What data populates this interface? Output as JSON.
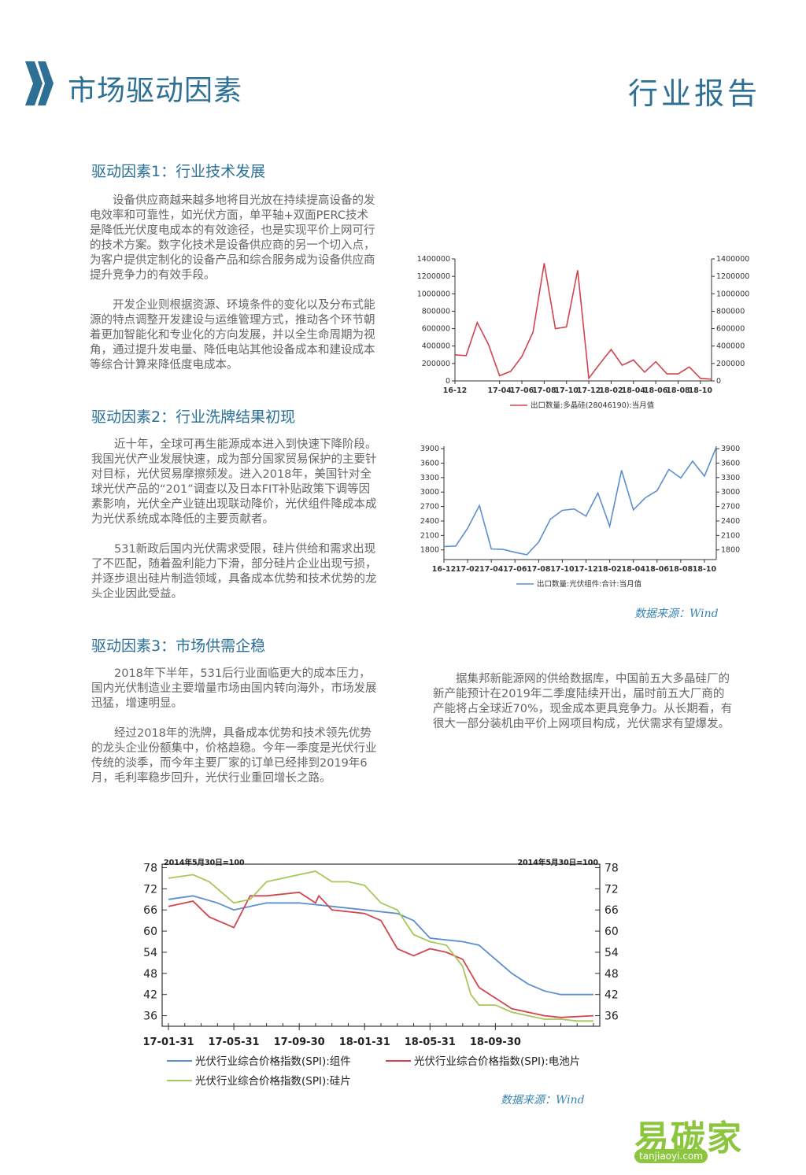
{
  "header": {
    "title": "市场驱动因素",
    "report_label": "行业报告"
  },
  "sections": [
    {
      "title": "驱动因素1：行业技术发展",
      "paragraphs": [
        "设备供应商越来越多地将目光放在持续提高设备的发电效率和可靠性，如光伏方面，单平轴+双面PERC技术是降低光伏度电成本的有效途径，也是实现平价上网可行的技术方案。数字化技术是设备供应商的另一个切入点，为客户提供定制化的设备产品和综合服务成为设备供应商提升竞争力的有效手段。",
        "开发企业则根据资源、环境条件的变化以及分布式能源的特点调整开发建设与运维管理方式，推动各个环节朝着更加智能化和专业化的方向发展，并以全生命周期为视角，通过提升发电量、降低电站其他设备成本和建设成本等综合计算来降低度电成本。"
      ]
    },
    {
      "title": "驱动因素2：行业洗牌结果初现",
      "paragraphs": [
        "近十年，全球可再生能源成本进入到快速下降阶段。我国光伏产业发展快速，成为部分国家贸易保护的主要针对目标，光伏贸易摩擦频发。进入2018年，美国针对全球光伏产品的“201”调查以及日本FIT补贴政策下调等因素影响，光伏全产业链出现联动降价，光伏组件降成本成为光伏系统成本降低的主要贡献者。",
        "531新政后国内光伏需求受限，硅片供给和需求出现了不匹配，随着盈利能力下滑，部分硅片企业出现亏损，并逐步退出硅片制造领域，具备成本优势和技术优势的龙头企业因此受益。"
      ]
    },
    {
      "title": "驱动因素3：市场供需企稳",
      "paragraphs": [
        "2018年下半年，531后行业面临更大的成本压力，国内光伏制造业主要增量市场由国内转向海外，市场发展迅猛，增速明显。",
        "经过2018年的洗牌，具备成本优势和技术领先优势的龙头企业份额集中，价格趋稳。今年一季度是光伏行业传统的淡季，而今年主要厂家的订单已经排到2019年6月，毛利率稳步回升，光伏行业重回增长之路。"
      ],
      "side_paragraph": "据集邦新能源网的供给数据库，中国前五大多晶硅厂的新产能预计在2019年二季度陆续开出，届时前五大厂商的产能将占全球近70%，现金成本更具竞争力。从长期看，有很大一部分装机由平价上网项目构成，光伏需求有望爆发。"
    }
  ],
  "source_note": "数据来源：Wind",
  "watermark": {
    "brand": "易碳家",
    "domain": "tanjiaoyi.com"
  },
  "colors": {
    "accent": "#2e6f96",
    "red": "#d0454f",
    "blue": "#5b8fd0",
    "green": "#a6c85a"
  },
  "chart_data": [
    {
      "type": "line",
      "x": [
        "16-12",
        "17-01",
        "17-02",
        "17-03",
        "17-04",
        "17-05",
        "17-06",
        "17-07",
        "17-08",
        "17-09",
        "17-10",
        "17-11",
        "17-12",
        "18-01",
        "18-02",
        "18-03",
        "18-04",
        "18-05",
        "18-06",
        "18-07",
        "18-08",
        "18-09",
        "18-10",
        "18-11"
      ],
      "x_tick_labels": [
        "16-12",
        "17-04",
        "17-06",
        "17-08",
        "17-10",
        "17-12",
        "18-02",
        "18-04",
        "18-06",
        "18-08",
        "18-10"
      ],
      "series": [
        {
          "name": "出口数量:多晶硅(28046190):当月值",
          "values": [
            300000,
            290000,
            670000,
            420000,
            60000,
            110000,
            280000,
            560000,
            1350000,
            600000,
            620000,
            1270000,
            30000,
            200000,
            360000,
            180000,
            240000,
            100000,
            220000,
            80000,
            80000,
            160000,
            30000,
            20000
          ]
        }
      ],
      "y_ticks": [
        "0",
        "200000",
        "400000",
        "600000",
        "800000",
        "1000000",
        "1200000",
        "1400000"
      ],
      "ylim": [
        0,
        1400000
      ]
    },
    {
      "type": "line",
      "x": [
        "16-12",
        "17-01",
        "17-02",
        "17-03",
        "17-04",
        "17-05",
        "17-06",
        "17-07",
        "17-08",
        "17-09",
        "17-10",
        "17-11",
        "17-12",
        "18-01",
        "18-02",
        "18-03",
        "18-04",
        "18-05",
        "18-06",
        "18-07",
        "18-08",
        "18-09",
        "18-10",
        "18-11"
      ],
      "x_tick_labels": [
        "16-12",
        "17-02",
        "17-04",
        "17-06",
        "17-08",
        "17-10",
        "17-12",
        "18-02",
        "18-04",
        "18-06",
        "18-08",
        "18-10"
      ],
      "series": [
        {
          "name": "出口数量:光伏组件:合计:当月值",
          "values": [
            1870,
            1880,
            2250,
            2720,
            1820,
            1810,
            1750,
            1700,
            1960,
            2440,
            2620,
            2650,
            2500,
            2980,
            2290,
            3450,
            2630,
            2880,
            3030,
            3470,
            3290,
            3640,
            3330,
            3930
          ]
        }
      ],
      "y_ticks": [
        "1800",
        "2100",
        "2400",
        "2700",
        "3000",
        "3300",
        "3600",
        "3900"
      ],
      "ylim": [
        1600,
        3950
      ]
    },
    {
      "type": "line",
      "x_tick_labels": [
        "17-01-31",
        "17-05-31",
        "17-09-30",
        "18-01-31",
        "18-05-31",
        "18-09-30"
      ],
      "annotation_left": "2014年5月30日=100",
      "annotation_right": "2014年5月30日=100",
      "y_ticks": [
        "36",
        "42",
        "48",
        "54",
        "60",
        "66",
        "72",
        "78"
      ],
      "ylim": [
        33,
        79
      ],
      "x_range_months": [
        0,
        26
      ],
      "series": [
        {
          "name": "光伏行业综合价格指数(SPI):组件",
          "x": [
            0,
            1.5,
            3,
            4,
            6,
            8,
            10,
            12,
            14,
            15,
            16,
            17,
            18,
            19,
            20,
            21,
            22,
            23,
            24,
            26
          ],
          "values": [
            69,
            70,
            68,
            66,
            68,
            68,
            67,
            66,
            65,
            63,
            58,
            57.5,
            57,
            56,
            52,
            48,
            45,
            43,
            42,
            42
          ]
        },
        {
          "name": "光伏行业综合价格指数(SPI):电池片",
          "x": [
            0,
            1.5,
            2.5,
            3.5,
            4,
            5,
            6,
            8,
            9,
            9.2,
            10,
            12,
            13,
            14,
            15,
            16,
            17,
            18,
            18.5,
            19,
            20,
            21,
            22,
            23,
            24,
            26
          ],
          "values": [
            67,
            68.5,
            64,
            62,
            61,
            70,
            70,
            71,
            68,
            70,
            66,
            65,
            63,
            55,
            53,
            55,
            54,
            52,
            48,
            44,
            41,
            38,
            37,
            36,
            35.5,
            36
          ]
        },
        {
          "name": "光伏行业综合价格指数(SPI):硅片",
          "x": [
            0,
            1.5,
            2.5,
            3.5,
            4,
            5,
            6,
            7,
            8,
            9,
            10,
            11,
            12,
            13,
            14,
            15,
            16,
            17,
            18,
            18.5,
            19,
            20,
            21,
            22,
            23,
            24,
            25,
            26
          ],
          "values": [
            75,
            76,
            74,
            70,
            68,
            69,
            74,
            75,
            76,
            77,
            74,
            74,
            73,
            68,
            66,
            59,
            57,
            56,
            50,
            42,
            39,
            39,
            37,
            36,
            35,
            35,
            34.5,
            34.5
          ]
        }
      ]
    }
  ]
}
